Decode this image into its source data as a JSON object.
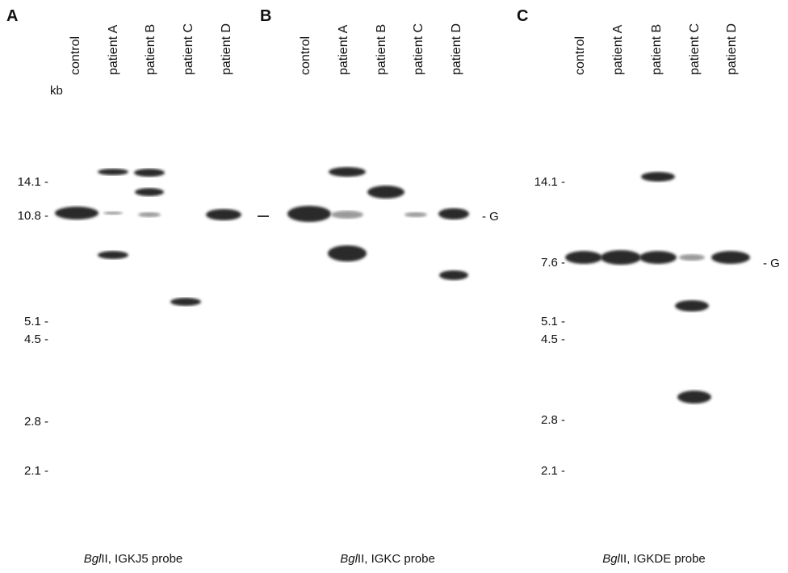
{
  "unit_label": "kb",
  "panels": [
    {
      "letter": "A",
      "lanes": [
        "control",
        "patient A",
        "patient B",
        "patient C",
        "patient D"
      ],
      "markers": [
        "14.1 -",
        "10.8 -",
        "5.1 -",
        "4.5 -",
        "2.8 -",
        "2.1 -"
      ],
      "caption": {
        "enzyme": "Bgl",
        "rest": "II, IGKJ5 probe"
      }
    },
    {
      "letter": "B",
      "lanes": [
        "control",
        "patient A",
        "patient B",
        "patient C",
        "patient D"
      ],
      "g_label": "- G",
      "caption": {
        "enzyme": "Bgl",
        "rest": "II, IGKC probe"
      }
    },
    {
      "letter": "C",
      "lanes": [
        "control",
        "patient A",
        "patient B",
        "patient C",
        "patient D"
      ],
      "markers": [
        "14.1 -",
        "7.6 -",
        "5.1 -",
        "4.5 -",
        "2.8 -",
        "2.1 -"
      ],
      "g_label": "- G",
      "caption": {
        "enzyme": "Bgl",
        "rest": "II, IGKDE probe"
      }
    }
  ]
}
